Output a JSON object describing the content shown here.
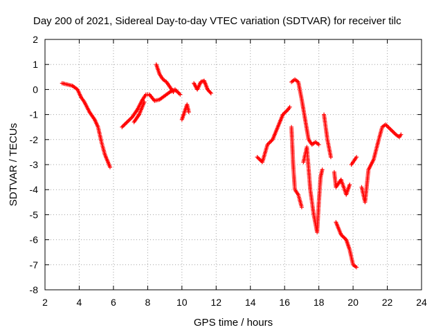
{
  "chart_data": {
    "type": "scatter",
    "title": "Day 200 of 2021, Sidereal Day-to-day VTEC variation (SDTVAR) for receiver tilc",
    "xlabel": "GPS time / hours",
    "ylabel": "SDTVAR / TECUs",
    "xlim": [
      2,
      24
    ],
    "ylim": [
      -8,
      2
    ],
    "xticks": [
      "2",
      "4",
      "6",
      "8",
      "10",
      "12",
      "14",
      "16",
      "18",
      "20",
      "22",
      "24"
    ],
    "yticks": [
      "2",
      "1",
      "0",
      "-1",
      "-2",
      "-3",
      "-4",
      "-5",
      "-6",
      "-7",
      "-8"
    ],
    "grid": true,
    "marker": "+",
    "series": [
      {
        "name": "SDTVAR",
        "color": "#ff0000",
        "segments": [
          [
            [
              3.0,
              0.25
            ],
            [
              3.3,
              0.2
            ],
            [
              3.6,
              0.15
            ],
            [
              3.9,
              0.0
            ],
            [
              4.1,
              -0.3
            ],
            [
              4.3,
              -0.5
            ],
            [
              4.6,
              -0.9
            ],
            [
              4.9,
              -1.2
            ],
            [
              5.1,
              -1.5
            ],
            [
              5.3,
              -2.1
            ],
            [
              5.5,
              -2.6
            ],
            [
              5.8,
              -3.1
            ]
          ],
          [
            [
              6.5,
              -1.5
            ],
            [
              6.8,
              -1.3
            ],
            [
              7.1,
              -1.1
            ],
            [
              7.4,
              -0.8
            ],
            [
              7.7,
              -0.4
            ],
            [
              7.9,
              -0.2
            ],
            [
              8.1,
              -0.2
            ],
            [
              8.4,
              -0.45
            ],
            [
              8.7,
              -0.4
            ],
            [
              9.0,
              -0.25
            ],
            [
              9.3,
              -0.1
            ],
            [
              9.6,
              0.0
            ],
            [
              9.9,
              -0.2
            ]
          ],
          [
            [
              7.2,
              -1.3
            ],
            [
              7.5,
              -1.0
            ],
            [
              7.8,
              -0.5
            ]
          ],
          [
            [
              8.5,
              1.0
            ],
            [
              8.7,
              0.6
            ],
            [
              8.9,
              0.4
            ],
            [
              9.1,
              0.3
            ],
            [
              9.3,
              0.1
            ],
            [
              9.5,
              -0.1
            ]
          ],
          [
            [
              10.0,
              -1.2
            ],
            [
              10.2,
              -0.8
            ],
            [
              10.3,
              -0.6
            ],
            [
              10.4,
              -0.9
            ]
          ],
          [
            [
              10.7,
              0.25
            ],
            [
              10.9,
              0.0
            ],
            [
              11.1,
              0.3
            ],
            [
              11.3,
              0.35
            ],
            [
              11.5,
              0.0
            ],
            [
              11.7,
              -0.15
            ]
          ],
          [
            [
              14.4,
              -2.7
            ],
            [
              14.7,
              -2.9
            ],
            [
              15.0,
              -2.2
            ],
            [
              15.3,
              -2.0
            ],
            [
              15.6,
              -1.5
            ],
            [
              15.9,
              -1.0
            ],
            [
              16.2,
              -0.8
            ],
            [
              16.3,
              -0.7
            ]
          ],
          [
            [
              16.4,
              -1.5
            ],
            [
              16.5,
              -3.0
            ],
            [
              16.6,
              -4.0
            ],
            [
              16.8,
              -4.2
            ],
            [
              17.0,
              -4.7
            ]
          ],
          [
            [
              16.4,
              0.3
            ],
            [
              16.6,
              0.4
            ],
            [
              16.8,
              0.3
            ],
            [
              17.0,
              -0.4
            ],
            [
              17.2,
              -1.2
            ],
            [
              17.4,
              -2.0
            ],
            [
              17.6,
              -2.2
            ],
            [
              17.8,
              -2.1
            ],
            [
              18.0,
              -2.2
            ]
          ],
          [
            [
              17.1,
              -2.9
            ],
            [
              17.3,
              -2.3
            ],
            [
              17.5,
              -4.0
            ],
            [
              17.7,
              -5.0
            ],
            [
              17.9,
              -5.7
            ],
            [
              18.0,
              -4.5
            ],
            [
              18.1,
              -3.5
            ],
            [
              18.2,
              -3.2
            ]
          ],
          [
            [
              18.3,
              -1.0
            ],
            [
              18.5,
              -2.0
            ],
            [
              18.7,
              -2.7
            ]
          ],
          [
            [
              18.9,
              -3.3
            ],
            [
              19.0,
              -3.9
            ],
            [
              19.3,
              -3.6
            ],
            [
              19.6,
              -4.2
            ],
            [
              19.8,
              -3.8
            ]
          ],
          [
            [
              19.0,
              -5.3
            ],
            [
              19.3,
              -5.8
            ],
            [
              19.6,
              -6.0
            ],
            [
              19.8,
              -6.4
            ],
            [
              20.0,
              -7.0
            ],
            [
              20.2,
              -7.1
            ]
          ],
          [
            [
              19.9,
              -3.0
            ],
            [
              20.1,
              -2.8
            ],
            [
              20.2,
              -2.7
            ]
          ],
          [
            [
              20.5,
              -3.9
            ],
            [
              20.7,
              -4.5
            ],
            [
              20.9,
              -3.2
            ],
            [
              21.2,
              -2.8
            ],
            [
              21.5,
              -2.0
            ],
            [
              21.7,
              -1.5
            ],
            [
              21.9,
              -1.4
            ],
            [
              22.2,
              -1.6
            ],
            [
              22.5,
              -1.8
            ],
            [
              22.7,
              -1.9
            ],
            [
              22.8,
              -1.8
            ]
          ]
        ]
      }
    ]
  }
}
